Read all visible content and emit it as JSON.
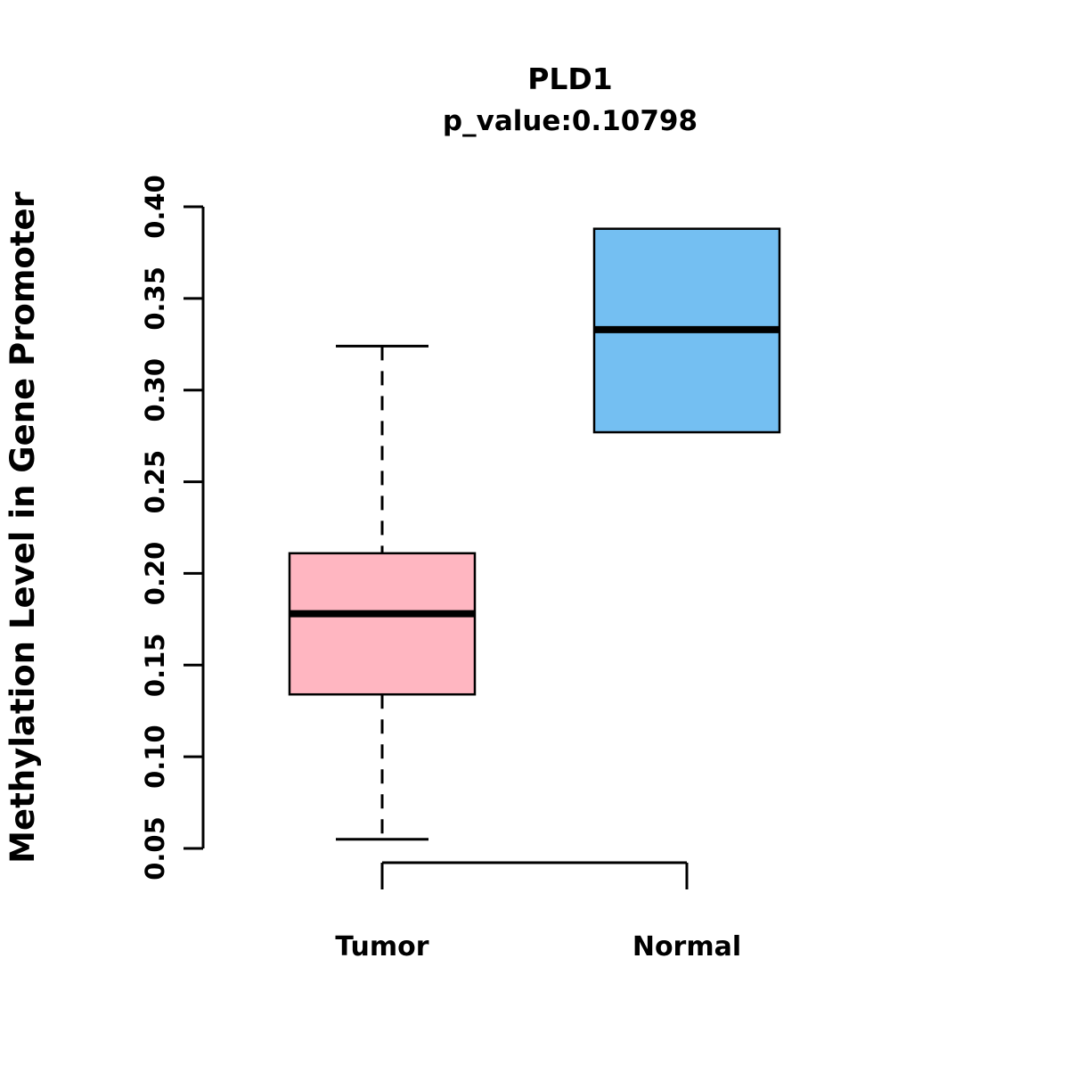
{
  "title": "PLD1",
  "subtitle": "p_value:0.10798",
  "ylabel": "Methylation Level in Gene Promoter",
  "chart_data": {
    "type": "boxplot",
    "title": "PLD1",
    "subtitle": "p_value:0.10798",
    "xlabel": "",
    "ylabel": "Methylation Level in Gene Promoter",
    "categories": [
      "Tumor",
      "Normal"
    ],
    "ylim": [
      0.05,
      0.4
    ],
    "yticks": [
      "0.05",
      "0.10",
      "0.15",
      "0.20",
      "0.25",
      "0.30",
      "0.35",
      "0.40"
    ],
    "grid": false,
    "legend": "none",
    "series": [
      {
        "name": "Tumor",
        "color": "#FFB6C1",
        "whisker_low": 0.055,
        "q1": 0.134,
        "median": 0.178,
        "q3": 0.211,
        "whisker_high": 0.324
      },
      {
        "name": "Normal",
        "color": "#74BFF2",
        "whisker_low": 0.277,
        "q1": 0.277,
        "median": 0.333,
        "q3": 0.388,
        "whisker_high": 0.388
      }
    ]
  },
  "colors": {
    "axis": "#000000",
    "box_stroke": "#000000",
    "median": "#000000",
    "background": "#ffffff"
  }
}
